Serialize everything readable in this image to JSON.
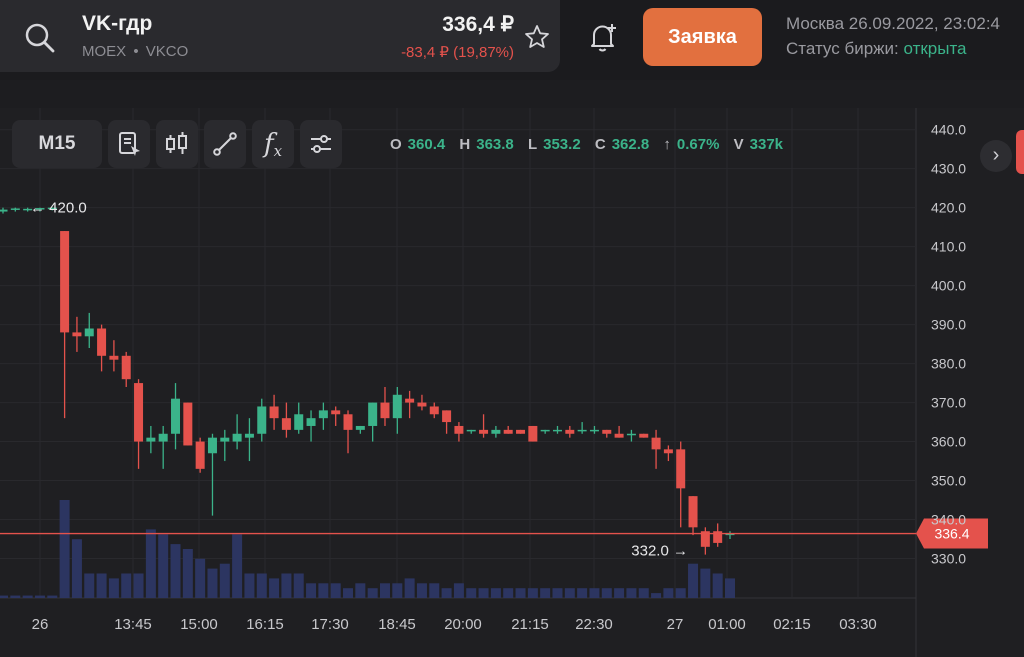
{
  "header": {
    "ticker": "VK-гдр",
    "exchange": "MOEX",
    "dot": "•",
    "code": "VKCO",
    "price": "336,4 ₽",
    "change": "-83,4 ₽ (19,87%)",
    "order_label": "Заявка",
    "datetime": "Москва 26.09.2022, 23:02:4",
    "status_label": "Статус биржи:",
    "status_value": "открыта"
  },
  "toolbar": {
    "interval": "M15",
    "icons": [
      "notes-icon",
      "candles-icon",
      "draw-line-icon",
      "function-icon",
      "settings-sliders-icon"
    ],
    "function_glyph": "f",
    "function_sub": "x"
  },
  "ohlc": {
    "o_label": "O",
    "o": "360.4",
    "h_label": "H",
    "h": "363.8",
    "l_label": "L",
    "l": "353.2",
    "c_label": "C",
    "c": "362.8",
    "arrow": "↑",
    "chg": "0.67%",
    "v_label": "V",
    "v": "337k"
  },
  "chart_data": {
    "type": "candlestick",
    "ylim": [
      325,
      443
    ],
    "y_ticks": [
      "440.0",
      "430.0",
      "420.0",
      "410.0",
      "400.0",
      "390.0",
      "380.0",
      "370.0",
      "360.0",
      "350.0",
      "340.0",
      "330.0"
    ],
    "x_ticks": [
      "26",
      "13:45",
      "15:00",
      "16:15",
      "17:30",
      "18:45",
      "20:00",
      "21:15",
      "22:30",
      "27",
      "01:00",
      "02:15",
      "03:30"
    ],
    "current_price": 336.4,
    "current_price_label": "336.4",
    "high_marker": "420.0",
    "low_marker": "332.0",
    "candles": [
      {
        "o": 419,
        "h": 420,
        "l": 418.5,
        "c": 419.5
      },
      {
        "o": 419.5,
        "h": 420,
        "l": 419,
        "c": 419.8
      },
      {
        "o": 419.6,
        "h": 420,
        "l": 419,
        "c": 419.7
      },
      {
        "o": 419.7,
        "h": 420,
        "l": 419,
        "c": 419.9
      },
      {
        "o": 419.9,
        "h": 420,
        "l": 419.3,
        "c": 420
      },
      {
        "o": 414,
        "h": 414,
        "l": 366,
        "c": 388
      },
      {
        "o": 388,
        "h": 392,
        "l": 383,
        "c": 387
      },
      {
        "o": 387,
        "h": 393,
        "l": 384,
        "c": 389
      },
      {
        "o": 389,
        "h": 390,
        "l": 378,
        "c": 382
      },
      {
        "o": 382,
        "h": 386,
        "l": 378,
        "c": 381
      },
      {
        "o": 382,
        "h": 383,
        "l": 374,
        "c": 376
      },
      {
        "o": 375,
        "h": 376,
        "l": 353,
        "c": 360
      },
      {
        "o": 360,
        "h": 364,
        "l": 357,
        "c": 361
      },
      {
        "o": 360,
        "h": 364,
        "l": 353,
        "c": 362
      },
      {
        "o": 362,
        "h": 375,
        "l": 358,
        "c": 371
      },
      {
        "o": 370,
        "h": 370,
        "l": 359,
        "c": 359
      },
      {
        "o": 360,
        "h": 361,
        "l": 352,
        "c": 353
      },
      {
        "o": 357,
        "h": 362,
        "l": 341,
        "c": 361
      },
      {
        "o": 360,
        "h": 363,
        "l": 355,
        "c": 361
      },
      {
        "o": 360,
        "h": 367,
        "l": 358,
        "c": 362
      },
      {
        "o": 361,
        "h": 366,
        "l": 355,
        "c": 362
      },
      {
        "o": 362,
        "h": 371,
        "l": 360,
        "c": 369
      },
      {
        "o": 369,
        "h": 372,
        "l": 363,
        "c": 366
      },
      {
        "o": 366,
        "h": 370,
        "l": 361,
        "c": 363
      },
      {
        "o": 363,
        "h": 370,
        "l": 362,
        "c": 367
      },
      {
        "o": 364,
        "h": 368,
        "l": 360,
        "c": 366
      },
      {
        "o": 366,
        "h": 370,
        "l": 363,
        "c": 368
      },
      {
        "o": 368,
        "h": 369,
        "l": 364,
        "c": 367
      },
      {
        "o": 367,
        "h": 368,
        "l": 357,
        "c": 363
      },
      {
        "o": 363,
        "h": 364,
        "l": 362,
        "c": 364
      },
      {
        "o": 364,
        "h": 370,
        "l": 360,
        "c": 370
      },
      {
        "o": 370,
        "h": 374,
        "l": 364,
        "c": 366
      },
      {
        "o": 366,
        "h": 374,
        "l": 362,
        "c": 372
      },
      {
        "o": 371,
        "h": 373,
        "l": 366,
        "c": 370
      },
      {
        "o": 370,
        "h": 372,
        "l": 368,
        "c": 369
      },
      {
        "o": 369,
        "h": 370,
        "l": 366,
        "c": 367
      },
      {
        "o": 368,
        "h": 368,
        "l": 362,
        "c": 365
      },
      {
        "o": 364,
        "h": 365,
        "l": 360,
        "c": 362
      },
      {
        "o": 363,
        "h": 363,
        "l": 362,
        "c": 363
      },
      {
        "o": 363,
        "h": 367,
        "l": 361,
        "c": 362
      },
      {
        "o": 362,
        "h": 364,
        "l": 361,
        "c": 363
      },
      {
        "o": 363,
        "h": 364,
        "l": 362,
        "c": 362
      },
      {
        "o": 363,
        "h": 363,
        "l": 362,
        "c": 362
      },
      {
        "o": 364,
        "h": 364,
        "l": 360,
        "c": 360
      },
      {
        "o": 363,
        "h": 363,
        "l": 362,
        "c": 363
      },
      {
        "o": 363,
        "h": 364,
        "l": 362,
        "c": 363
      },
      {
        "o": 363,
        "h": 364,
        "l": 361,
        "c": 362
      },
      {
        "o": 363,
        "h": 365,
        "l": 362,
        "c": 363
      },
      {
        "o": 363,
        "h": 364,
        "l": 362,
        "c": 363
      },
      {
        "o": 363,
        "h": 363,
        "l": 361,
        "c": 362
      },
      {
        "o": 362,
        "h": 364,
        "l": 361,
        "c": 361
      },
      {
        "o": 362,
        "h": 363,
        "l": 360,
        "c": 362
      },
      {
        "o": 362,
        "h": 362,
        "l": 361,
        "c": 361
      },
      {
        "o": 361,
        "h": 363,
        "l": 353,
        "c": 358
      },
      {
        "o": 358,
        "h": 359,
        "l": 355,
        "c": 357
      },
      {
        "o": 358,
        "h": 360,
        "l": 338,
        "c": 348
      },
      {
        "o": 346,
        "h": 346,
        "l": 336,
        "c": 338
      },
      {
        "o": 337,
        "h": 338,
        "l": 331,
        "c": 333
      },
      {
        "o": 337,
        "h": 339,
        "l": 333,
        "c": 334
      },
      {
        "o": 336,
        "h": 337,
        "l": 335,
        "c": 336.4
      }
    ],
    "volumes": [
      0.5,
      0.5,
      0.5,
      0.5,
      0.5,
      20,
      12,
      5,
      5,
      4,
      5,
      5,
      14,
      13,
      11,
      10,
      8,
      6,
      7,
      13,
      5,
      5,
      4,
      5,
      5,
      3,
      3,
      3,
      2,
      3,
      2,
      3,
      3,
      4,
      3,
      3,
      2,
      3,
      2,
      2,
      2,
      2,
      2,
      2,
      2,
      2,
      2,
      2,
      2,
      2,
      2,
      2,
      2,
      1,
      2,
      2,
      7,
      6,
      5,
      4
    ]
  }
}
